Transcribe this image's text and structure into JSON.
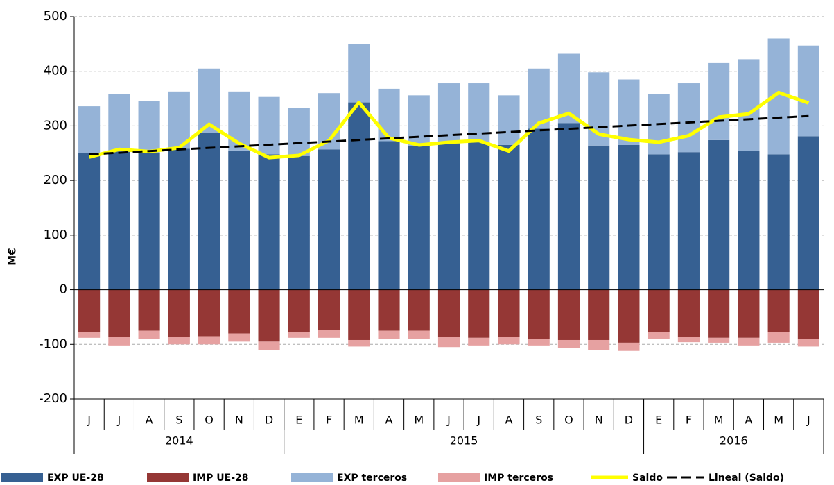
{
  "chart_data": {
    "type": "bar",
    "y_label": "M€",
    "categories": [
      "J",
      "J",
      "A",
      "S",
      "O",
      "N",
      "D",
      "E",
      "F",
      "M",
      "A",
      "M",
      "J",
      "J",
      "A",
      "S",
      "O",
      "N",
      "D",
      "E",
      "F",
      "M",
      "A",
      "M",
      "J"
    ],
    "groups": [
      {
        "label": "2014",
        "count": 7
      },
      {
        "label": "2015",
        "count": 12
      },
      {
        "label": "2016",
        "count": 6
      }
    ],
    "series": [
      {
        "name": "EXP UE-28",
        "kind": "bar",
        "color": "#366092",
        "values": [
          251,
          253,
          251,
          258,
          287,
          255,
          248,
          245,
          257,
          343,
          272,
          263,
          268,
          270,
          265,
          295,
          305,
          264,
          265,
          248,
          252,
          274,
          254,
          248,
          281
        ]
      },
      {
        "name": "IMP UE-28",
        "kind": "bar",
        "color": "#953735",
        "values": [
          -78,
          -86,
          -75,
          -86,
          -85,
          -80,
          -95,
          -78,
          -73,
          -92,
          -75,
          -75,
          -86,
          -88,
          -86,
          -90,
          -92,
          -92,
          -97,
          -78,
          -86,
          -88,
          -88,
          -78,
          -90
        ]
      },
      {
        "name": "EXP terceros",
        "kind": "bar",
        "color": "#95b3d7",
        "values": [
          85,
          105,
          94,
          105,
          118,
          108,
          105,
          88,
          103,
          107,
          96,
          93,
          110,
          108,
          91,
          110,
          127,
          134,
          120,
          110,
          126,
          141,
          168,
          212,
          166
        ]
      },
      {
        "name": "IMP terceros",
        "kind": "bar",
        "color": "#e6a1a1",
        "values": [
          -10,
          -16,
          -15,
          -14,
          -15,
          -15,
          -15,
          -10,
          -15,
          -12,
          -15,
          -15,
          -19,
          -14,
          -14,
          -12,
          -14,
          -18,
          -15,
          -12,
          -10,
          -9,
          -14,
          -19,
          -14
        ]
      },
      {
        "name": "Saldo",
        "kind": "line",
        "color": "#ffff00",
        "values": [
          243,
          257,
          253,
          260,
          303,
          268,
          242,
          246,
          273,
          343,
          278,
          265,
          270,
          273,
          254,
          305,
          323,
          285,
          275,
          270,
          282,
          316,
          322,
          361,
          342
        ]
      },
      {
        "name": "Lineal (Saldo)",
        "kind": "line",
        "dashed": true,
        "color": "#000000",
        "values": [
          248,
          250.9,
          253.8,
          256.8,
          259.7,
          262.6,
          265.5,
          268.4,
          271.3,
          274.3,
          277.2,
          280.1,
          283,
          285.9,
          288.8,
          291.8,
          294.7,
          297.6,
          300.5,
          303.4,
          306.3,
          309.3,
          312.2,
          315.1,
          318
        ]
      }
    ],
    "ylim": [
      -200,
      500
    ],
    "yticks": [
      -200,
      -100,
      0,
      100,
      200,
      300,
      400,
      500
    ],
    "grid": true
  }
}
